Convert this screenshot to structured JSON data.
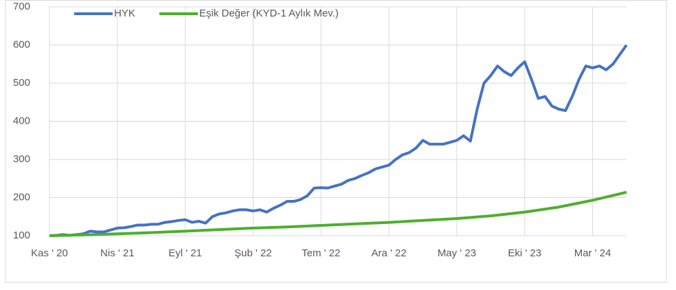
{
  "chart_data": {
    "type": "line",
    "xlim": [
      0,
      42.5
    ],
    "ylim": [
      100,
      700
    ],
    "yticks": [
      100,
      200,
      300,
      400,
      500,
      600,
      700
    ],
    "xticks": [
      {
        "value": 0,
        "label": "Kas ' 20"
      },
      {
        "value": 5,
        "label": "Nis ' 21"
      },
      {
        "value": 10,
        "label": "Eyl ' 21"
      },
      {
        "value": 15,
        "label": "Şub ' 22"
      },
      {
        "value": 20,
        "label": "Tem ' 22"
      },
      {
        "value": 25,
        "label": "Ara ' 22"
      },
      {
        "value": 30,
        "label": "May ' 23"
      },
      {
        "value": 35,
        "label": "Eki ' 23"
      },
      {
        "value": 40,
        "label": "Mar ' 24"
      }
    ],
    "grid": true,
    "legend": "top-left",
    "series": [
      {
        "name": "HYK",
        "color": "#4472c4",
        "x": [
          0,
          0.5,
          1,
          1.5,
          2,
          2.5,
          3,
          3.5,
          4,
          4.5,
          5,
          5.5,
          6,
          6.5,
          7,
          7.5,
          8,
          8.5,
          9,
          9.5,
          10,
          10.5,
          11,
          11.5,
          12,
          12.5,
          13,
          13.5,
          14,
          14.5,
          15,
          15.5,
          16,
          16.5,
          17,
          17.5,
          18,
          18.5,
          19,
          19.5,
          20,
          20.5,
          21,
          21.5,
          22,
          22.5,
          23,
          23.5,
          24,
          24.5,
          25,
          25.5,
          26,
          26.5,
          27,
          27.5,
          28,
          28.5,
          29,
          29.5,
          30,
          30.5,
          31,
          31.5,
          32,
          32.5,
          33,
          33.5,
          34,
          34.5,
          35,
          35.5,
          36,
          36.5,
          37,
          37.5,
          38,
          38.5,
          39,
          39.5,
          40,
          40.5,
          41,
          41.5,
          42,
          42.5
        ],
        "values": [
          100,
          101,
          103,
          101,
          103,
          105,
          112,
          110,
          110,
          115,
          120,
          121,
          124,
          128,
          128,
          130,
          130,
          135,
          137,
          140,
          142,
          135,
          138,
          133,
          150,
          157,
          160,
          165,
          168,
          168,
          165,
          168,
          162,
          172,
          180,
          190,
          190,
          195,
          205,
          225,
          226,
          225,
          230,
          235,
          245,
          250,
          258,
          265,
          275,
          280,
          285,
          300,
          312,
          318,
          330,
          350,
          340,
          340,
          340,
          345,
          350,
          362,
          348,
          432,
          500,
          520,
          545,
          530,
          520,
          540,
          556,
          510,
          460,
          465,
          440,
          432,
          428,
          465,
          510,
          545,
          540,
          545,
          535,
          550,
          575,
          600
        ]
      },
      {
        "name": "Eşik Değer (KYD-1 Aylık Mev.)",
        "color": "#4caf2c",
        "x": [
          0,
          2.5,
          5,
          7.5,
          10,
          12.5,
          15,
          17.5,
          20,
          22.5,
          25,
          27.5,
          30,
          32.5,
          35,
          37.5,
          40,
          42.5
        ],
        "values": [
          100,
          102,
          105,
          108,
          112,
          116,
          120,
          123,
          127,
          131,
          135,
          140,
          145,
          152,
          162,
          175,
          193,
          214
        ]
      }
    ]
  }
}
